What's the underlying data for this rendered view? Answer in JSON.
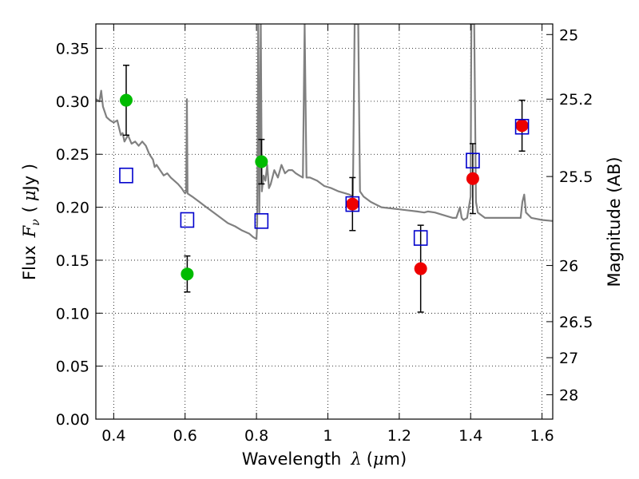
{
  "chart_data": {
    "type": "scatter",
    "xlabel_main": "Wavelength",
    "xlabel_symbol": "λ",
    "xlabel_unit_open": "(",
    "xlabel_unit_mu": "μ",
    "xlabel_unit_rest": "m)",
    "ylabel_main": "Flux",
    "ylabel_symbol": "F",
    "ylabel_sub": "ν",
    "ylabel_unit_open": "(",
    "ylabel_unit_mu": "μ",
    "ylabel_unit_rest": "Jy )",
    "y2label": "Magnitude (AB)",
    "xlim": [
      0.35,
      1.63
    ],
    "ylim": [
      0.0,
      0.373
    ],
    "grid": true,
    "x_ticks": [
      0.4,
      0.6,
      0.8,
      1.0,
      1.2,
      1.4,
      1.6
    ],
    "x_tick_labels": [
      "0.4",
      "0.6",
      "0.8",
      "1",
      "1.2",
      "1.4",
      "1.6"
    ],
    "y_ticks": [
      0.0,
      0.05,
      0.1,
      0.15,
      0.2,
      0.25,
      0.3,
      0.35
    ],
    "y_tick_labels": [
      "0.00",
      "0.05",
      "0.10",
      "0.15",
      "0.20",
      "0.25",
      "0.30",
      "0.35"
    ],
    "y2_ticks": [
      {
        "label": "25",
        "flux": 0.363
      },
      {
        "label": "25.2",
        "flux": 0.302
      },
      {
        "label": "25.5",
        "flux": 0.229
      },
      {
        "label": "26",
        "flux": 0.145
      },
      {
        "label": "26.5",
        "flux": 0.092
      },
      {
        "label": "27",
        "flux": 0.058
      },
      {
        "label": "28",
        "flux": 0.023
      }
    ],
    "colors": {
      "green": "#00bb00",
      "red": "#ee0000",
      "model": "#0000cc",
      "spectrum": "#808080",
      "errorbar": "#000000"
    },
    "series": [
      {
        "marker": "circle",
        "color": "green",
        "points": [
          {
            "x": 0.435,
            "y": 0.301,
            "err": 0.033
          },
          {
            "x": 0.606,
            "y": 0.137,
            "err": 0.017
          },
          {
            "x": 0.814,
            "y": 0.243,
            "err": 0.021
          }
        ]
      },
      {
        "marker": "circle",
        "color": "red",
        "points": [
          {
            "x": 1.069,
            "y": 0.203,
            "err": 0.025
          },
          {
            "x": 1.26,
            "y": 0.142,
            "err": 0.041
          },
          {
            "x": 1.406,
            "y": 0.227,
            "err": 0.033
          },
          {
            "x": 1.544,
            "y": 0.277,
            "err": 0.024
          }
        ]
      },
      {
        "marker": "open-square",
        "color": "model",
        "points": [
          {
            "x": 0.435,
            "y": 0.23
          },
          {
            "x": 0.606,
            "y": 0.188
          },
          {
            "x": 0.814,
            "y": 0.187
          },
          {
            "x": 1.069,
            "y": 0.203
          },
          {
            "x": 1.26,
            "y": 0.171
          },
          {
            "x": 1.406,
            "y": 0.244
          },
          {
            "x": 1.544,
            "y": 0.276
          }
        ]
      },
      {
        "type": "line",
        "color": "spectrum",
        "points": [
          [
            0.35,
            0.302
          ],
          [
            0.36,
            0.3
          ],
          [
            0.365,
            0.31
          ],
          [
            0.37,
            0.295
          ],
          [
            0.38,
            0.285
          ],
          [
            0.39,
            0.282
          ],
          [
            0.4,
            0.28
          ],
          [
            0.41,
            0.282
          ],
          [
            0.42,
            0.268
          ],
          [
            0.425,
            0.27
          ],
          [
            0.43,
            0.262
          ],
          [
            0.44,
            0.268
          ],
          [
            0.45,
            0.26
          ],
          [
            0.46,
            0.262
          ],
          [
            0.47,
            0.258
          ],
          [
            0.48,
            0.262
          ],
          [
            0.49,
            0.258
          ],
          [
            0.5,
            0.25
          ],
          [
            0.51,
            0.245
          ],
          [
            0.515,
            0.238
          ],
          [
            0.52,
            0.24
          ],
          [
            0.53,
            0.235
          ],
          [
            0.54,
            0.23
          ],
          [
            0.55,
            0.232
          ],
          [
            0.56,
            0.228
          ],
          [
            0.57,
            0.225
          ],
          [
            0.58,
            0.222
          ],
          [
            0.59,
            0.218
          ],
          [
            0.6,
            0.213
          ],
          [
            0.603,
            0.215
          ],
          [
            0.605,
            0.302
          ],
          [
            0.607,
            0.213
          ],
          [
            0.62,
            0.21
          ],
          [
            0.64,
            0.205
          ],
          [
            0.66,
            0.2
          ],
          [
            0.68,
            0.195
          ],
          [
            0.7,
            0.19
          ],
          [
            0.72,
            0.185
          ],
          [
            0.74,
            0.182
          ],
          [
            0.76,
            0.178
          ],
          [
            0.78,
            0.175
          ],
          [
            0.79,
            0.172
          ],
          [
            0.8,
            0.17
          ],
          [
            0.802,
            0.185
          ],
          [
            0.805,
            0.373
          ],
          [
            0.808,
            0.195
          ],
          [
            0.812,
            0.373
          ],
          [
            0.815,
            0.215
          ],
          [
            0.82,
            0.23
          ],
          [
            0.825,
            0.225
          ],
          [
            0.83,
            0.24
          ],
          [
            0.835,
            0.218
          ],
          [
            0.84,
            0.222
          ],
          [
            0.85,
            0.235
          ],
          [
            0.86,
            0.228
          ],
          [
            0.87,
            0.24
          ],
          [
            0.88,
            0.232
          ],
          [
            0.89,
            0.235
          ],
          [
            0.9,
            0.235
          ],
          [
            0.91,
            0.232
          ],
          [
            0.92,
            0.23
          ],
          [
            0.93,
            0.228
          ],
          [
            0.935,
            0.373
          ],
          [
            0.94,
            0.228
          ],
          [
            0.95,
            0.228
          ],
          [
            0.97,
            0.225
          ],
          [
            0.99,
            0.22
          ],
          [
            1.01,
            0.218
          ],
          [
            1.03,
            0.215
          ],
          [
            1.05,
            0.213
          ],
          [
            1.06,
            0.212
          ],
          [
            1.07,
            0.21
          ],
          [
            1.075,
            0.373
          ],
          [
            1.085,
            0.373
          ],
          [
            1.09,
            0.215
          ],
          [
            1.1,
            0.21
          ],
          [
            1.12,
            0.205
          ],
          [
            1.15,
            0.2
          ],
          [
            1.2,
            0.198
          ],
          [
            1.25,
            0.196
          ],
          [
            1.27,
            0.195
          ],
          [
            1.28,
            0.196
          ],
          [
            1.3,
            0.195
          ],
          [
            1.32,
            0.193
          ],
          [
            1.35,
            0.19
          ],
          [
            1.36,
            0.19
          ],
          [
            1.37,
            0.2
          ],
          [
            1.375,
            0.19
          ],
          [
            1.38,
            0.188
          ],
          [
            1.39,
            0.19
          ],
          [
            1.395,
            0.2
          ],
          [
            1.4,
            0.21
          ],
          [
            1.402,
            0.373
          ],
          [
            1.41,
            0.373
          ],
          [
            1.415,
            0.205
          ],
          [
            1.42,
            0.195
          ],
          [
            1.44,
            0.19
          ],
          [
            1.46,
            0.19
          ],
          [
            1.48,
            0.19
          ],
          [
            1.5,
            0.19
          ],
          [
            1.52,
            0.19
          ],
          [
            1.54,
            0.19
          ],
          [
            1.545,
            0.205
          ],
          [
            1.55,
            0.212
          ],
          [
            1.555,
            0.195
          ],
          [
            1.57,
            0.19
          ],
          [
            1.6,
            0.188
          ],
          [
            1.63,
            0.187
          ]
        ]
      }
    ]
  }
}
